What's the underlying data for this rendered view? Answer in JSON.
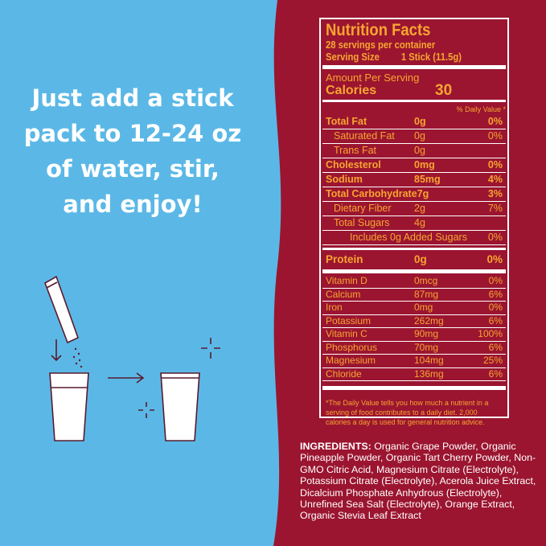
{
  "colors": {
    "left_bg": "#5bb8e6",
    "right_bg": "#9b1530",
    "label_text": "#f7a531"
  },
  "headline": [
    "Just add a stick",
    "pack to 12-24 oz",
    "of water, stir,",
    "and enjoy!"
  ],
  "nutrition": {
    "title": "Nutrition Facts",
    "servings": "28 servings per container",
    "serving_size_label": "Serving Size",
    "serving_size_value": "1 Stick (11.5g)",
    "amount_per_serving": "Amount Per Serving",
    "calories_label": "Calories",
    "calories_value": "30",
    "dv_header": "% Daily Value *",
    "rows": [
      {
        "name": "Total Fat",
        "amount": "0g",
        "dv": "0%",
        "bold": true
      },
      {
        "name": "Saturated Fat",
        "amount": "0g",
        "dv": "0%",
        "indent": 1
      },
      {
        "name": "Trans Fat",
        "amount": "0g",
        "dv": "",
        "indent": 1
      },
      {
        "name": "Cholesterol",
        "amount": "0mg",
        "dv": "0%",
        "bold": true
      },
      {
        "name": "Sodium",
        "amount": "85mg",
        "dv": "4%",
        "bold": true
      },
      {
        "name": "Total Carbohydrate",
        "amount": "7g",
        "dv": "3%",
        "bold": true
      },
      {
        "name": "Dietary Fiber",
        "amount": "2g",
        "dv": "7%",
        "indent": 1
      },
      {
        "name": "Total Sugars",
        "amount": "4g",
        "dv": "",
        "indent": 1
      },
      {
        "name": "Includes 0g Added Sugars",
        "amount": "",
        "dv": "0%",
        "indent": 2
      }
    ],
    "protein": {
      "name": "Protein",
      "amount": "0g",
      "dv": "0%"
    },
    "micros": [
      {
        "name": "Vitamin D",
        "amount": "0mcg",
        "dv": "0%"
      },
      {
        "name": "Calcium",
        "amount": "87mg",
        "dv": "6%"
      },
      {
        "name": "Iron",
        "amount": "0mg",
        "dv": "0%"
      },
      {
        "name": "Potassium",
        "amount": "262mg",
        "dv": "6%"
      },
      {
        "name": "Vitamin C",
        "amount": "90mg",
        "dv": "100%"
      },
      {
        "name": "Phosphorus",
        "amount": "70mg",
        "dv": "6%"
      },
      {
        "name": "Magnesium",
        "amount": "104mg",
        "dv": "25%"
      },
      {
        "name": "Chloride",
        "amount": "136mg",
        "dv": "6%"
      }
    ],
    "footnote": "*The Daily Value tells you how much a nutrient in a serving of food contributes to a daily diet. 2,000 calories a day is used for general nutrition advice."
  },
  "ingredients": {
    "label": "INGREDIENTS:",
    "text": " Organic Grape Powder, Organic Pineapple Powder, Organic Tart Cherry Powder, Non-GMO Citric Acid, Magnesium Citrate (Electrolyte), Potassium Citrate (Electrolyte), Acerola Juice Extract, Dicalcium Phosphate Anhydrous (Electrolyte), Unrefined Sea Salt (Electrolyte), Orange Extract, Organic Stevia Leaf Extract"
  }
}
